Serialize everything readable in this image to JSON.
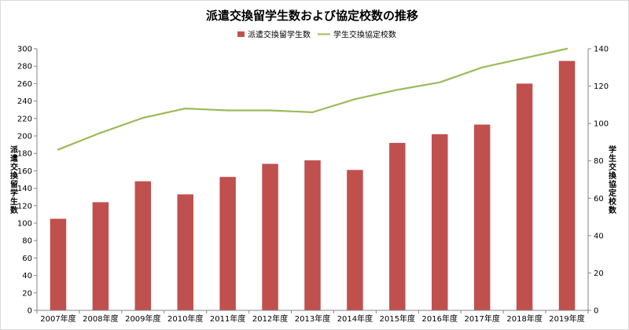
{
  "chart_data": {
    "type": "bar",
    "title": "派遣交換留学生数および協定校数の推移",
    "categories": [
      "2007年度",
      "2008年度",
      "2009年度",
      "2010年度",
      "2011年度",
      "2012年度",
      "2013年度",
      "2014年度",
      "2015年度",
      "2016年度",
      "2017年度",
      "2018年度",
      "2019年度"
    ],
    "series": [
      {
        "name": "派遣交換留学生数",
        "type": "bar",
        "axis": "left",
        "color": "#c0504d",
        "values": [
          105,
          124,
          148,
          133,
          153,
          168,
          172,
          161,
          192,
          202,
          213,
          260,
          286
        ]
      },
      {
        "name": "学生交換協定校数",
        "type": "line",
        "axis": "right",
        "color": "#9bbb59",
        "values": [
          86,
          95,
          103,
          108,
          107,
          107,
          106,
          113,
          118,
          122,
          130,
          135,
          140
        ]
      }
    ],
    "ylabel": "派遣交換留学生数",
    "ylabel_right": "学生交換協定校数",
    "ylim": [
      0,
      300
    ],
    "yticks": [
      "0",
      "20",
      "40",
      "60",
      "80",
      "100",
      "120",
      "140",
      "160",
      "180",
      "200",
      "220",
      "240",
      "260",
      "280",
      "300"
    ],
    "ylim_right": [
      0,
      140
    ],
    "yticks_right": [
      "0",
      "20",
      "40",
      "60",
      "80",
      "100",
      "120",
      "140"
    ],
    "legend_position": "top",
    "grid": false
  }
}
